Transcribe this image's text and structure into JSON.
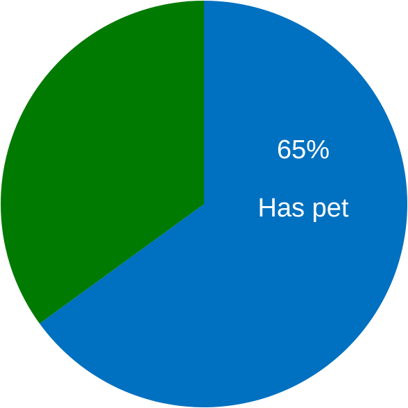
{
  "chart_data": {
    "type": "pie",
    "slices": [
      {
        "value": 65,
        "percent_label": "65%",
        "label": "Has pet",
        "color": "#0070C0"
      },
      {
        "value": 35,
        "percent_label": "",
        "label": "",
        "color": "#007A00"
      }
    ],
    "start_angle_deg": 0,
    "direction": "clockwise"
  }
}
